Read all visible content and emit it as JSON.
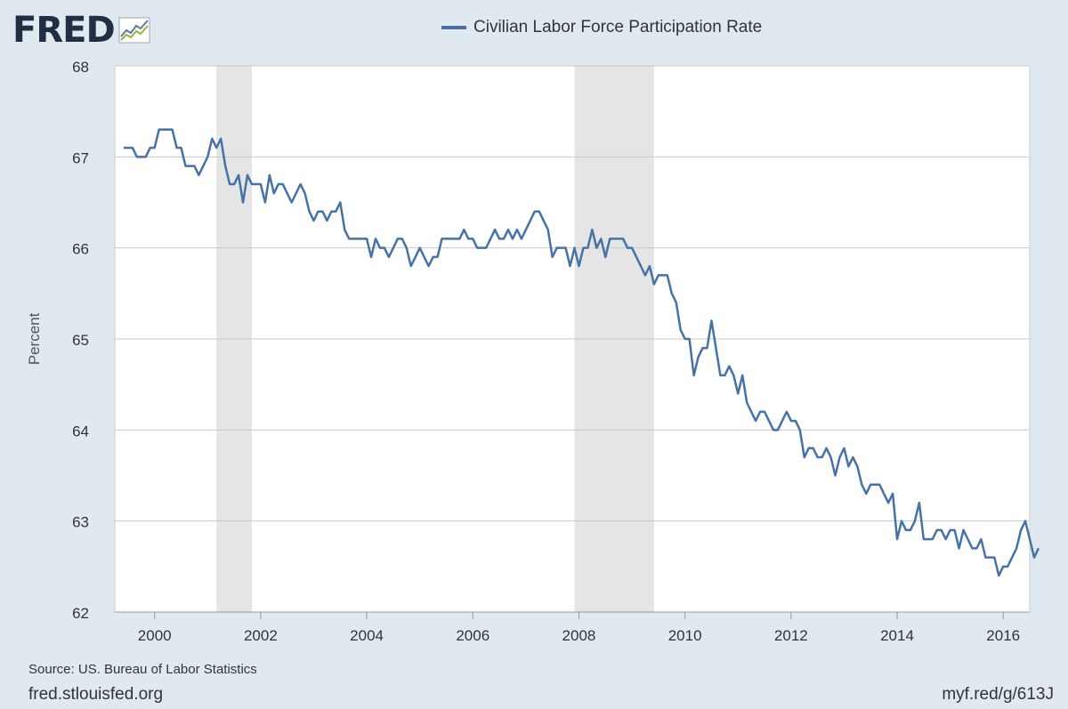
{
  "brand": {
    "logo_text": "FRED",
    "logo_icon": "chart-trend-icon"
  },
  "legend": {
    "label": "Civilian Labor Force Participation Rate",
    "color": "#4572a7"
  },
  "footer": {
    "source": "Source: US. Bureau of Labor Statistics",
    "site": "fred.stlouisfed.org",
    "shortlink": "myf.red/g/613J"
  },
  "chart_data": {
    "type": "line",
    "title": "Civilian Labor Force Participation Rate",
    "xlabel": "",
    "ylabel": "Percent",
    "xlim": [
      1999.25,
      2016.5
    ],
    "ylim": [
      62,
      68
    ],
    "x_ticks": [
      "2000",
      "2002",
      "2004",
      "2006",
      "2008",
      "2010",
      "2012",
      "2014",
      "2016"
    ],
    "y_ticks": [
      "62",
      "63",
      "64",
      "65",
      "66",
      "67",
      "68"
    ],
    "grid": "horizontal",
    "recessions": [
      [
        2001.167,
        2001.833
      ],
      [
        2007.917,
        2009.417
      ]
    ],
    "series": [
      {
        "name": "Civilian Labor Force Participation Rate",
        "color": "#4572a7",
        "start": 1999.417,
        "frequency": "monthly",
        "values": [
          67.1,
          67.1,
          67.1,
          67.0,
          67.0,
          67.0,
          67.1,
          67.1,
          67.3,
          67.3,
          67.3,
          67.3,
          67.1,
          67.1,
          66.9,
          66.9,
          66.9,
          66.8,
          66.9,
          67.0,
          67.2,
          67.1,
          67.2,
          66.9,
          66.7,
          66.7,
          66.8,
          66.5,
          66.8,
          66.7,
          66.7,
          66.7,
          66.5,
          66.8,
          66.6,
          66.7,
          66.7,
          66.6,
          66.5,
          66.6,
          66.7,
          66.6,
          66.4,
          66.3,
          66.4,
          66.4,
          66.3,
          66.4,
          66.4,
          66.5,
          66.2,
          66.1,
          66.1,
          66.1,
          66.1,
          66.1,
          65.9,
          66.1,
          66.0,
          66.0,
          65.9,
          66.0,
          66.1,
          66.1,
          66.0,
          65.8,
          65.9,
          66.0,
          65.9,
          65.8,
          65.9,
          65.9,
          66.1,
          66.1,
          66.1,
          66.1,
          66.1,
          66.2,
          66.1,
          66.1,
          66.0,
          66.0,
          66.0,
          66.1,
          66.2,
          66.1,
          66.1,
          66.2,
          66.1,
          66.2,
          66.1,
          66.2,
          66.3,
          66.4,
          66.4,
          66.3,
          66.2,
          65.9,
          66.0,
          66.0,
          66.0,
          65.8,
          66.0,
          65.8,
          66.0,
          66.0,
          66.2,
          66.0,
          66.1,
          65.9,
          66.1,
          66.1,
          66.1,
          66.1,
          66.0,
          66.0,
          65.9,
          65.8,
          65.7,
          65.8,
          65.6,
          65.7,
          65.7,
          65.7,
          65.5,
          65.4,
          65.1,
          65.0,
          65.0,
          64.6,
          64.8,
          64.9,
          64.9,
          65.2,
          64.9,
          64.6,
          64.6,
          64.7,
          64.6,
          64.4,
          64.6,
          64.3,
          64.2,
          64.1,
          64.2,
          64.2,
          64.1,
          64.0,
          64.0,
          64.1,
          64.2,
          64.1,
          64.1,
          64.0,
          63.7,
          63.8,
          63.8,
          63.7,
          63.7,
          63.8,
          63.7,
          63.5,
          63.7,
          63.8,
          63.6,
          63.7,
          63.6,
          63.4,
          63.3,
          63.4,
          63.4,
          63.4,
          63.3,
          63.2,
          63.3,
          62.8,
          63.0,
          62.9,
          62.9,
          63.0,
          63.2,
          62.8,
          62.8,
          62.8,
          62.9,
          62.9,
          62.8,
          62.9,
          62.9,
          62.7,
          62.9,
          62.8,
          62.7,
          62.7,
          62.8,
          62.6,
          62.6,
          62.6,
          62.4,
          62.5,
          62.5,
          62.6,
          62.7,
          62.9,
          63.0,
          62.8,
          62.6,
          62.7
        ]
      }
    ]
  }
}
